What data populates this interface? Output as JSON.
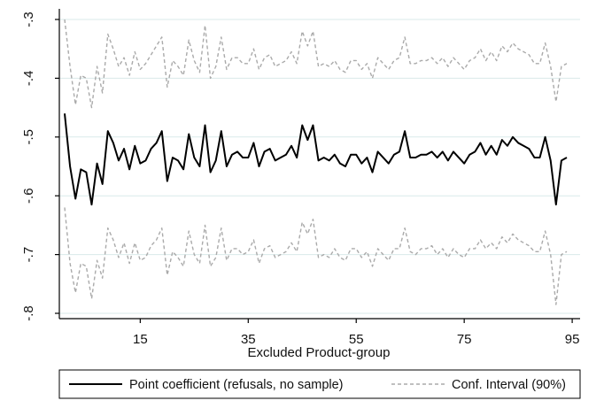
{
  "chart_data": {
    "type": "line",
    "xlabel": "Excluded Product-group",
    "ylabel": "",
    "xlim": [
      1,
      96
    ],
    "ylim": [
      -0.82,
      -0.3
    ],
    "xticks": [
      15,
      35,
      55,
      75,
      95
    ],
    "xtick_labels": [
      "15",
      "35",
      "55",
      "75",
      "95"
    ],
    "yticks": [
      -0.3,
      -0.4,
      -0.5,
      -0.6,
      -0.7,
      -0.8
    ],
    "ytick_labels": [
      "-.3",
      "-.4",
      "-.5",
      "-.6",
      "-.7",
      "-.8"
    ],
    "grid": "horizontal",
    "legend_position": "bottom",
    "x": [
      1,
      2,
      3,
      4,
      5,
      6,
      7,
      8,
      9,
      10,
      11,
      12,
      13,
      14,
      15,
      16,
      17,
      18,
      19,
      20,
      21,
      22,
      23,
      24,
      25,
      26,
      27,
      28,
      29,
      30,
      31,
      32,
      33,
      34,
      35,
      36,
      37,
      38,
      39,
      40,
      41,
      42,
      43,
      44,
      45,
      46,
      47,
      48,
      49,
      50,
      51,
      52,
      53,
      54,
      55,
      56,
      57,
      58,
      59,
      60,
      61,
      62,
      63,
      64,
      65,
      66,
      67,
      68,
      69,
      70,
      71,
      72,
      73,
      74,
      75,
      76,
      77,
      78,
      79,
      80,
      81,
      82,
      83,
      84,
      85,
      86,
      87,
      88,
      89,
      90,
      91,
      92,
      93,
      94
    ],
    "series": [
      {
        "name": "Point coefficient (refusals, no sample)",
        "style": "solid",
        "color": "#000000",
        "values": [
          -0.46,
          -0.55,
          -0.605,
          -0.555,
          -0.56,
          -0.615,
          -0.545,
          -0.58,
          -0.49,
          -0.51,
          -0.54,
          -0.52,
          -0.555,
          -0.515,
          -0.545,
          -0.54,
          -0.52,
          -0.51,
          -0.49,
          -0.575,
          -0.535,
          -0.54,
          -0.555,
          -0.495,
          -0.535,
          -0.55,
          -0.48,
          -0.56,
          -0.54,
          -0.49,
          -0.55,
          -0.53,
          -0.525,
          -0.535,
          -0.535,
          -0.51,
          -0.55,
          -0.525,
          -0.52,
          -0.54,
          -0.535,
          -0.53,
          -0.515,
          -0.535,
          -0.48,
          -0.505,
          -0.48,
          -0.54,
          -0.535,
          -0.54,
          -0.53,
          -0.545,
          -0.55,
          -0.53,
          -0.53,
          -0.545,
          -0.535,
          -0.56,
          -0.525,
          -0.535,
          -0.545,
          -0.53,
          -0.525,
          -0.49,
          -0.535,
          -0.535,
          -0.53,
          -0.53,
          -0.525,
          -0.535,
          -0.525,
          -0.54,
          -0.525,
          -0.535,
          -0.545,
          -0.53,
          -0.525,
          -0.51,
          -0.53,
          -0.515,
          -0.53,
          -0.505,
          -0.515,
          -0.5,
          -0.51,
          -0.515,
          -0.52,
          -0.535,
          -0.535,
          -0.5,
          -0.54,
          -0.615,
          -0.54,
          -0.535
        ]
      },
      {
        "name": "Conf. Interval (90%)",
        "style": "dashed",
        "color": "#aaaaaa",
        "values": [
          -0.3,
          -0.38,
          -0.445,
          -0.395,
          -0.4,
          -0.45,
          -0.38,
          -0.425,
          -0.325,
          -0.35,
          -0.38,
          -0.365,
          -0.395,
          -0.355,
          -0.385,
          -0.375,
          -0.36,
          -0.345,
          -0.33,
          -0.415,
          -0.37,
          -0.38,
          -0.395,
          -0.335,
          -0.37,
          -0.39,
          -0.31,
          -0.4,
          -0.38,
          -0.33,
          -0.385,
          -0.365,
          -0.365,
          -0.375,
          -0.375,
          -0.35,
          -0.385,
          -0.365,
          -0.36,
          -0.38,
          -0.375,
          -0.37,
          -0.355,
          -0.375,
          -0.32,
          -0.345,
          -0.32,
          -0.38,
          -0.375,
          -0.38,
          -0.37,
          -0.385,
          -0.39,
          -0.37,
          -0.37,
          -0.385,
          -0.375,
          -0.4,
          -0.365,
          -0.375,
          -0.385,
          -0.37,
          -0.365,
          -0.33,
          -0.375,
          -0.375,
          -0.37,
          -0.37,
          -0.365,
          -0.375,
          -0.365,
          -0.38,
          -0.365,
          -0.375,
          -0.385,
          -0.37,
          -0.365,
          -0.35,
          -0.37,
          -0.355,
          -0.37,
          -0.345,
          -0.355,
          -0.34,
          -0.35,
          -0.355,
          -0.36,
          -0.375,
          -0.375,
          -0.34,
          -0.38,
          -0.44,
          -0.38,
          -0.375
        ]
      },
      {
        "name": "Conf. Interval (90%)",
        "style": "dashed",
        "color": "#aaaaaa",
        "values": [
          -0.62,
          -0.715,
          -0.765,
          -0.715,
          -0.72,
          -0.775,
          -0.71,
          -0.74,
          -0.655,
          -0.675,
          -0.705,
          -0.68,
          -0.715,
          -0.68,
          -0.71,
          -0.705,
          -0.685,
          -0.675,
          -0.655,
          -0.735,
          -0.695,
          -0.705,
          -0.72,
          -0.66,
          -0.7,
          -0.715,
          -0.65,
          -0.72,
          -0.705,
          -0.655,
          -0.71,
          -0.69,
          -0.69,
          -0.7,
          -0.695,
          -0.675,
          -0.715,
          -0.69,
          -0.685,
          -0.705,
          -0.7,
          -0.695,
          -0.68,
          -0.695,
          -0.645,
          -0.665,
          -0.64,
          -0.705,
          -0.7,
          -0.705,
          -0.69,
          -0.705,
          -0.71,
          -0.69,
          -0.69,
          -0.705,
          -0.695,
          -0.72,
          -0.69,
          -0.7,
          -0.71,
          -0.69,
          -0.69,
          -0.655,
          -0.695,
          -0.7,
          -0.69,
          -0.69,
          -0.685,
          -0.7,
          -0.69,
          -0.705,
          -0.69,
          -0.7,
          -0.705,
          -0.69,
          -0.69,
          -0.675,
          -0.69,
          -0.68,
          -0.69,
          -0.67,
          -0.68,
          -0.665,
          -0.675,
          -0.68,
          -0.685,
          -0.695,
          -0.695,
          -0.66,
          -0.7,
          -0.785,
          -0.7,
          -0.695
        ]
      }
    ],
    "legend": [
      {
        "label": "Point coefficient (refusals, no sample)",
        "style": "solid"
      },
      {
        "label": "Conf. Interval (90%)",
        "style": "dashed"
      }
    ]
  }
}
